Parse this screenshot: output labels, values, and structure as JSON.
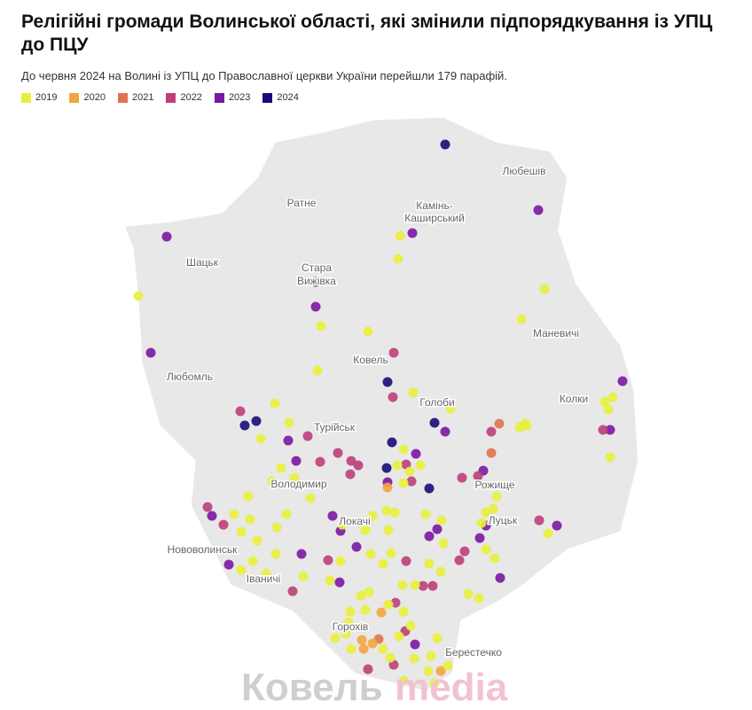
{
  "header": {
    "title": "Релігійні громади Волинської області, які змінили підпорядкування із УПЦ до ПЦУ",
    "subtitle": "До червня 2024 на Волині із УПЦ до Православної церкви України перейшли 179 парафій."
  },
  "legend": [
    {
      "label": "2019",
      "color": "#e9f03c"
    },
    {
      "label": "2020",
      "color": "#f2a63f"
    },
    {
      "label": "2021",
      "color": "#e0744f"
    },
    {
      "label": "2022",
      "color": "#bd3f7a"
    },
    {
      "label": "2023",
      "color": "#7b17a1"
    },
    {
      "label": "2024",
      "color": "#170c78"
    }
  ],
  "map": {
    "places": [
      "Любешів",
      "Ратне",
      "Камінь-",
      "Каширський",
      "Шацьк",
      "Стара",
      "Вижівка",
      "Маневичі",
      "Ковель",
      "Любомль",
      "Колки",
      "Голоби",
      "Турійськ",
      "Рожище",
      "Володимир",
      "Луцьк",
      "Локачі",
      "Нововолинськ",
      "Іваничі",
      "Горохів",
      "Берестечко"
    ]
  },
  "watermark": {
    "part1": "Ковель",
    "part2": "media"
  }
}
